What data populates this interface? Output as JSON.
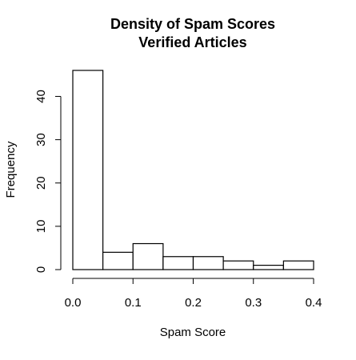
{
  "chart_data": {
    "type": "histogram",
    "title_lines": [
      "Density of Spam Scores",
      "Verified Articles"
    ],
    "xlabel": "Spam Score",
    "ylabel": "Frequency",
    "bins": [
      {
        "x0": 0.0,
        "x1": 0.05,
        "count": 46
      },
      {
        "x0": 0.05,
        "x1": 0.1,
        "count": 4
      },
      {
        "x0": 0.1,
        "x1": 0.15,
        "count": 6
      },
      {
        "x0": 0.15,
        "x1": 0.2,
        "count": 3
      },
      {
        "x0": 0.2,
        "x1": 0.25,
        "count": 3
      },
      {
        "x0": 0.25,
        "x1": 0.3,
        "count": 2
      },
      {
        "x0": 0.3,
        "x1": 0.35,
        "count": 1
      },
      {
        "x0": 0.35,
        "x1": 0.4,
        "count": 2
      }
    ],
    "x_ticks": [
      0.0,
      0.1,
      0.2,
      0.3,
      0.4
    ],
    "x_tick_labels": [
      "0.0",
      "0.1",
      "0.2",
      "0.3",
      "0.4"
    ],
    "y_ticks": [
      0,
      10,
      20,
      30,
      40
    ],
    "y_tick_labels": [
      "0",
      "10",
      "20",
      "30",
      "40"
    ],
    "xlim": [
      0,
      0.4
    ],
    "ylim": [
      0,
      46
    ],
    "grid": false,
    "bar_fill": "#ffffff",
    "bar_stroke": "#000000"
  }
}
